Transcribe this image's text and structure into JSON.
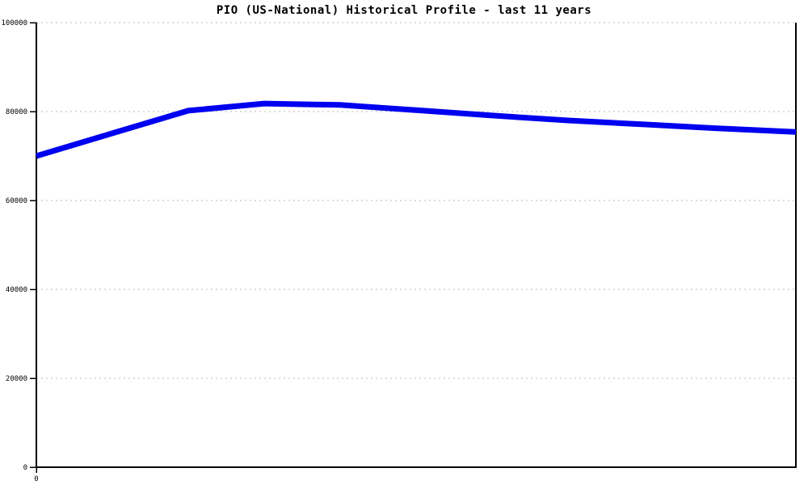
{
  "chart_data": {
    "type": "line",
    "title": "PIO (US-National) Historical Profile - last 11 years",
    "xlabel": "",
    "ylabel": "",
    "ylim": [
      0,
      100000
    ],
    "y_ticks": [
      0,
      20000,
      40000,
      60000,
      80000,
      100000
    ],
    "x_tick_labels": [
      "0"
    ],
    "x_origin_label": "0",
    "num_points": 11,
    "grid": true,
    "legend": "none",
    "series": [
      {
        "color": "#0000f0",
        "values": [
          70000,
          75100,
          80200,
          81800,
          81500,
          80300,
          79100,
          78000,
          77100,
          76200,
          75400
        ]
      }
    ]
  },
  "colors": {
    "background": "#ffffff",
    "axis": "#000000",
    "grid": "#b9b9b9",
    "text": "#000000",
    "line": "#0000f0"
  }
}
